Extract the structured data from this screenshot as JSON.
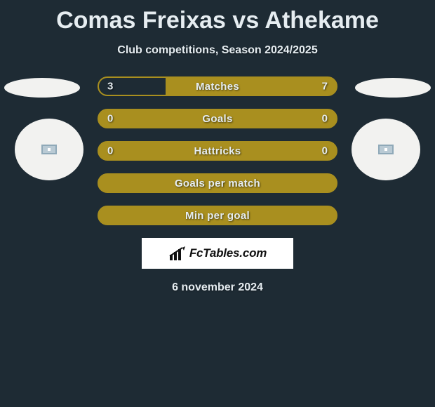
{
  "title": "Comas Freixas vs Athekame",
  "subtitle": "Club competitions, Season 2024/2025",
  "date": "6 november 2024",
  "logo_text": "FcTables.com",
  "colors": {
    "background": "#1e2b34",
    "bar_fill": "#a98f1f",
    "bar_empty": "#1e2b34",
    "text": "#e6edf1",
    "logo_bg": "#ffffff",
    "ellipse": "#f2f2f0"
  },
  "bars": [
    {
      "label": "Matches",
      "left": "3",
      "right": "7",
      "left_pct": 28,
      "right_pct": 0
    },
    {
      "label": "Goals",
      "left": "0",
      "right": "0",
      "left_pct": 0,
      "right_pct": 0
    },
    {
      "label": "Hattricks",
      "left": "0",
      "right": "0",
      "left_pct": 0,
      "right_pct": 0
    },
    {
      "label": "Goals per match",
      "left": "",
      "right": "",
      "left_pct": 0,
      "right_pct": 0
    },
    {
      "label": "Min per goal",
      "left": "",
      "right": "",
      "left_pct": 0,
      "right_pct": 0
    }
  ]
}
